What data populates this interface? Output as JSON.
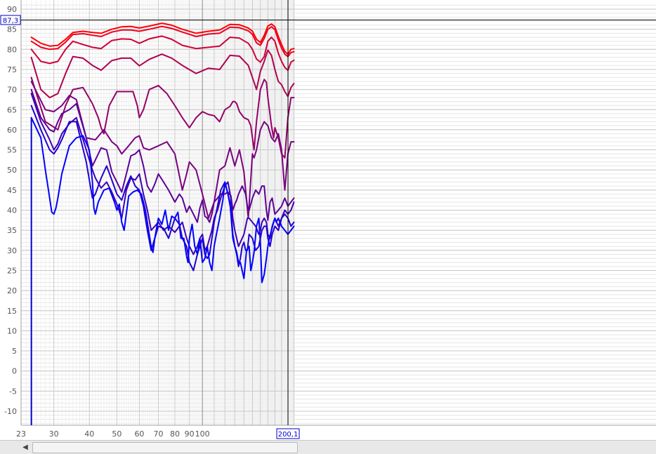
{
  "chart_data": {
    "type": "line",
    "xscale": "log",
    "xlim": [
      23,
      210
    ],
    "ylim": [
      -15,
      92
    ],
    "grid": true,
    "y_ticks": [
      90,
      85,
      80,
      75,
      70,
      65,
      60,
      55,
      50,
      45,
      40,
      35,
      30,
      25,
      20,
      15,
      10,
      5,
      0,
      -5,
      -10
    ],
    "y_tick_labels": [
      "90",
      "85",
      "80",
      "75",
      "70",
      "65",
      "60",
      "55",
      "50",
      "45",
      "40",
      "35",
      "30",
      "25",
      "20",
      "15",
      "10",
      "5",
      "0",
      "-5",
      "-10"
    ],
    "x_ticks": [
      23,
      30,
      40,
      50,
      60,
      70,
      80,
      90,
      100
    ],
    "x_tick_labels": [
      "23",
      "30",
      "40",
      "50",
      "60",
      "70",
      "80",
      "90",
      "100"
    ],
    "cursor": {
      "x": 200.1,
      "y": 87.3,
      "x_label": "200,1",
      "y_label": "87,3"
    },
    "series": [
      {
        "color": "#ff0000",
        "x": [
          25,
          27,
          29,
          31,
          33,
          35,
          38,
          41,
          44,
          48,
          52,
          56,
          60,
          65,
          72,
          78,
          85,
          95,
          105,
          115,
          125,
          135,
          145,
          150,
          155,
          160,
          165,
          170,
          175,
          180,
          185,
          190,
          195,
          200,
          205,
          210
        ],
        "y": [
          83,
          81.5,
          80.8,
          81,
          82.5,
          84.2,
          84.5,
          84.2,
          84,
          85,
          85.6,
          85.7,
          85.3,
          85.8,
          86.5,
          86,
          85,
          84,
          84.5,
          84.8,
          86.2,
          86.1,
          85.3,
          84.5,
          82.5,
          81.7,
          83.5,
          85.8,
          86.3,
          85.6,
          83.2,
          81.2,
          79.5,
          78.8,
          80,
          80.2
        ]
      },
      {
        "color": "#ee0022",
        "x": [
          25,
          27,
          29,
          31,
          33,
          35,
          38,
          41,
          44,
          48,
          52,
          56,
          60,
          65,
          72,
          78,
          85,
          95,
          105,
          115,
          125,
          135,
          145,
          150,
          155,
          160,
          165,
          170,
          175,
          180,
          185,
          190,
          195,
          200,
          205,
          210
        ],
        "y": [
          82,
          80.5,
          80,
          80.2,
          81.8,
          83.7,
          83.9,
          83.5,
          83.2,
          84.3,
          84.8,
          84.8,
          84.5,
          85,
          85.7,
          85.2,
          84.3,
          83.2,
          83.8,
          84,
          85.5,
          85.4,
          84.6,
          83.7,
          81.6,
          81,
          82.7,
          85,
          85.6,
          84.9,
          82.3,
          80.3,
          78.8,
          78.2,
          79.2,
          79.4
        ]
      },
      {
        "color": "#d00038",
        "x": [
          25,
          27,
          29,
          31,
          33,
          35,
          38,
          41,
          44,
          48,
          52,
          56,
          60,
          65,
          72,
          78,
          85,
          95,
          105,
          115,
          125,
          135,
          145,
          150,
          155,
          160,
          165,
          170,
          175,
          180,
          185,
          190,
          195,
          200,
          205,
          210
        ],
        "y": [
          80,
          77,
          76.5,
          77,
          80,
          82,
          81.2,
          80.5,
          80.2,
          82.2,
          82.6,
          82.5,
          81.5,
          82.6,
          83.3,
          82.5,
          81,
          80.2,
          80.5,
          80.8,
          83,
          82.8,
          81.5,
          80,
          77.6,
          76.8,
          78.2,
          82,
          83,
          82,
          79,
          77,
          75.5,
          74.8,
          76.8,
          77.3
        ]
      },
      {
        "color": "#b20050",
        "x": [
          25,
          27,
          29,
          31,
          33,
          35,
          38,
          41,
          44,
          48,
          52,
          56,
          60,
          65,
          72,
          78,
          85,
          95,
          105,
          115,
          125,
          135,
          145,
          150,
          155,
          160,
          165,
          170,
          175,
          180,
          185,
          190,
          195,
          200,
          205,
          210
        ],
        "y": [
          78,
          70,
          68,
          69,
          74,
          78.2,
          77.8,
          76,
          74.8,
          77.2,
          77.8,
          77.8,
          75.9,
          77.5,
          78.8,
          77.8,
          76,
          74,
          75.3,
          75,
          78.5,
          78.3,
          76,
          73,
          70,
          74.5,
          77,
          79.8,
          78.5,
          75,
          72,
          71.2,
          69.5,
          68.3,
          70.5,
          71.5
        ]
      },
      {
        "color": "#950068",
        "x": [
          25,
          28,
          31,
          33,
          35,
          38,
          41,
          43,
          44,
          45,
          47,
          50,
          53,
          57,
          59,
          60,
          62,
          65,
          70,
          75,
          80,
          85,
          90,
          95,
          100,
          105,
          110,
          115,
          120,
          125,
          128,
          130,
          132,
          135,
          140,
          145,
          148,
          150,
          152,
          155,
          160,
          165,
          168,
          170,
          175,
          178,
          180,
          185,
          190,
          195,
          200,
          205,
          210
        ],
        "y": [
          73,
          62,
          60,
          66,
          70,
          70.5,
          66.5,
          63,
          60.5,
          59,
          66,
          69.5,
          69.5,
          69.5,
          66,
          63,
          65,
          70,
          71,
          69,
          66,
          63,
          60.5,
          63,
          64.5,
          63.8,
          63.5,
          62,
          65,
          65.8,
          67,
          67,
          66.5,
          64.5,
          63,
          62.5,
          61,
          58,
          55,
          62,
          70,
          72.5,
          71.8,
          68,
          61,
          58,
          60.5,
          58,
          54,
          53,
          63,
          68,
          68
        ]
      },
      {
        "color": "#7a0080",
        "x": [
          25,
          28,
          30,
          32,
          34,
          36,
          39,
          42,
          45,
          48,
          50,
          52,
          55,
          58,
          60,
          62,
          65,
          70,
          75,
          80,
          85,
          88,
          90,
          95,
          100,
          105,
          110,
          115,
          120,
          125,
          130,
          135,
          140,
          145,
          150,
          152,
          155,
          160,
          165,
          170,
          175,
          180,
          185,
          190,
          195,
          200,
          205,
          210
        ],
        "y": [
          72,
          65,
          64.5,
          66,
          68.5,
          67.5,
          58,
          57.5,
          60,
          57,
          56,
          54,
          56,
          58,
          58.5,
          55.5,
          55,
          56,
          57,
          54,
          45,
          49,
          52,
          50,
          44,
          38,
          42,
          50,
          51,
          55.5,
          51,
          55,
          49.5,
          38,
          54,
          53,
          55,
          60,
          62,
          61,
          58,
          57,
          59,
          55,
          45,
          54,
          57,
          57
        ]
      },
      {
        "color": "#5c0098",
        "x": [
          25,
          27,
          29,
          30,
          31,
          32,
          34,
          36,
          39,
          41,
          42,
          44,
          46,
          48,
          50,
          52,
          54,
          56,
          58,
          60,
          62,
          64,
          66,
          68,
          70,
          73,
          76,
          80,
          83,
          85,
          88,
          90,
          93,
          96,
          98,
          100,
          102,
          104,
          106,
          108,
          110,
          113,
          116,
          120,
          123,
          126,
          128,
          130,
          132,
          134,
          136,
          138,
          140,
          142,
          144,
          146,
          150,
          154,
          158,
          160,
          162,
          165,
          168,
          170,
          173,
          176,
          180,
          185,
          190,
          195,
          200,
          205,
          210
        ],
        "y": [
          70,
          63,
          60,
          59.5,
          62,
          64,
          65,
          66.5,
          58,
          51,
          52.5,
          55.5,
          55,
          49.5,
          47,
          44.5,
          49,
          53.5,
          54,
          55,
          51,
          46,
          44.5,
          46.5,
          49,
          47,
          45,
          42,
          44,
          43,
          39.5,
          41,
          39,
          37,
          40.5,
          42.5,
          38.5,
          38,
          37,
          39,
          42,
          43,
          44,
          44,
          44.5,
          43.5,
          40,
          41.5,
          42.5,
          44,
          45,
          46,
          45,
          44,
          41,
          40,
          43,
          45,
          44,
          45,
          46,
          46,
          40,
          37.5,
          42,
          43,
          39,
          40,
          41,
          43,
          41,
          42,
          43
        ]
      },
      {
        "color": "#3e00b5",
        "x": [
          25,
          27,
          29,
          30,
          31,
          32,
          34,
          36,
          39,
          41,
          42,
          44,
          46,
          48,
          50,
          52,
          54,
          56,
          58,
          60,
          62,
          64,
          66,
          68,
          70,
          73,
          76,
          80,
          83,
          85,
          88,
          90,
          93,
          96,
          98,
          100,
          102,
          104,
          106,
          108,
          110,
          113,
          116,
          120,
          123,
          126,
          128,
          130,
          132,
          134,
          136,
          138,
          140,
          142,
          144,
          146,
          150,
          154,
          158,
          160,
          162,
          165,
          168,
          170,
          173,
          176,
          180,
          185,
          190,
          195,
          200,
          205,
          210
        ],
        "y": [
          69,
          62,
          57.5,
          55,
          56.5,
          59,
          61.5,
          63,
          55,
          50,
          48,
          45.5,
          47,
          44.5,
          41.5,
          38,
          45,
          48,
          47.5,
          49,
          44,
          40,
          35,
          36,
          37,
          35,
          36,
          34.5,
          36,
          37,
          33,
          31,
          29,
          31,
          33,
          34,
          30,
          31,
          33,
          35,
          38,
          40,
          43,
          46,
          47,
          43,
          38,
          35,
          33,
          31,
          32,
          33,
          34,
          36,
          38,
          38,
          37,
          36,
          34,
          35,
          37,
          38,
          37,
          34,
          33,
          36,
          38,
          36,
          38,
          40,
          39,
          40,
          42
        ]
      },
      {
        "color": "#2000d0",
        "x": [
          25,
          27,
          29,
          30,
          31,
          32,
          34,
          36,
          39,
          41,
          42,
          44,
          46,
          48,
          50,
          52,
          54,
          56,
          58,
          60,
          62,
          64,
          66,
          68,
          70,
          73,
          76,
          80,
          83,
          85,
          88,
          90,
          93,
          96,
          98,
          100,
          102,
          104,
          106,
          108,
          110,
          113,
          116,
          120,
          123,
          126,
          128,
          130,
          132,
          134,
          136,
          138,
          140,
          142,
          144,
          146,
          150,
          154,
          158,
          160,
          162,
          165,
          168,
          170,
          173,
          176,
          180,
          185,
          190,
          195,
          200,
          205,
          210
        ],
        "y": [
          66,
          60,
          55,
          54,
          55.5,
          57.5,
          62,
          62,
          52,
          43,
          44,
          48,
          51,
          47.5,
          44,
          42.5,
          46,
          48.5,
          46,
          45,
          41,
          35,
          30,
          33,
          36,
          35.5,
          33,
          38,
          36.5,
          33,
          31,
          27,
          25,
          29,
          31,
          33,
          29,
          28,
          29,
          33,
          37,
          41,
          45,
          47,
          44,
          40,
          34,
          31,
          29,
          26,
          28,
          31,
          32,
          30,
          30,
          34,
          33,
          30,
          31,
          33,
          35,
          36,
          36,
          33,
          31,
          34,
          36,
          35,
          38,
          39,
          38,
          36,
          37
        ]
      },
      {
        "color": "#0000ff",
        "x": [
          25,
          27,
          28,
          29,
          29.5,
          30,
          30.5,
          31,
          32,
          34,
          36,
          38,
          40,
          41,
          41.5,
          42,
          43,
          45,
          47,
          49,
          50,
          51,
          52,
          53,
          55,
          57,
          59,
          61,
          63,
          66,
          67,
          68,
          70,
          72,
          74,
          76,
          78,
          80,
          82,
          84,
          86,
          88,
          89,
          90,
          92,
          94,
          96,
          98,
          100,
          102,
          104,
          106,
          108,
          110,
          112,
          115,
          118,
          120,
          122,
          125,
          128,
          130,
          132,
          134,
          136,
          140,
          143,
          146,
          148,
          150,
          152,
          155,
          158,
          160,
          162,
          165,
          168,
          170,
          172,
          175,
          178,
          180,
          182,
          185,
          190,
          195,
          200,
          205,
          210
        ],
        "y": [
          63,
          58,
          50,
          43,
          39.5,
          39,
          40.5,
          43,
          49,
          56,
          58,
          58.5,
          55,
          47,
          40.5,
          39,
          42,
          45,
          45.5,
          42,
          40,
          41.5,
          37,
          35,
          43.5,
          44.5,
          45,
          44,
          40,
          31,
          29.5,
          33,
          38,
          36.5,
          40,
          35,
          38.5,
          38,
          39.5,
          33,
          33,
          28.5,
          27,
          33,
          36.5,
          31,
          29,
          33,
          27,
          28,
          31,
          27,
          25,
          31,
          34,
          38,
          42.5,
          47,
          45,
          42,
          33,
          31,
          29.5,
          27,
          27,
          23,
          30,
          31,
          25,
          27,
          29.5,
          36,
          38,
          32,
          22,
          24,
          28,
          31,
          33,
          35,
          37,
          38,
          37,
          38,
          36,
          35,
          34,
          35,
          36
        ]
      }
    ]
  }
}
